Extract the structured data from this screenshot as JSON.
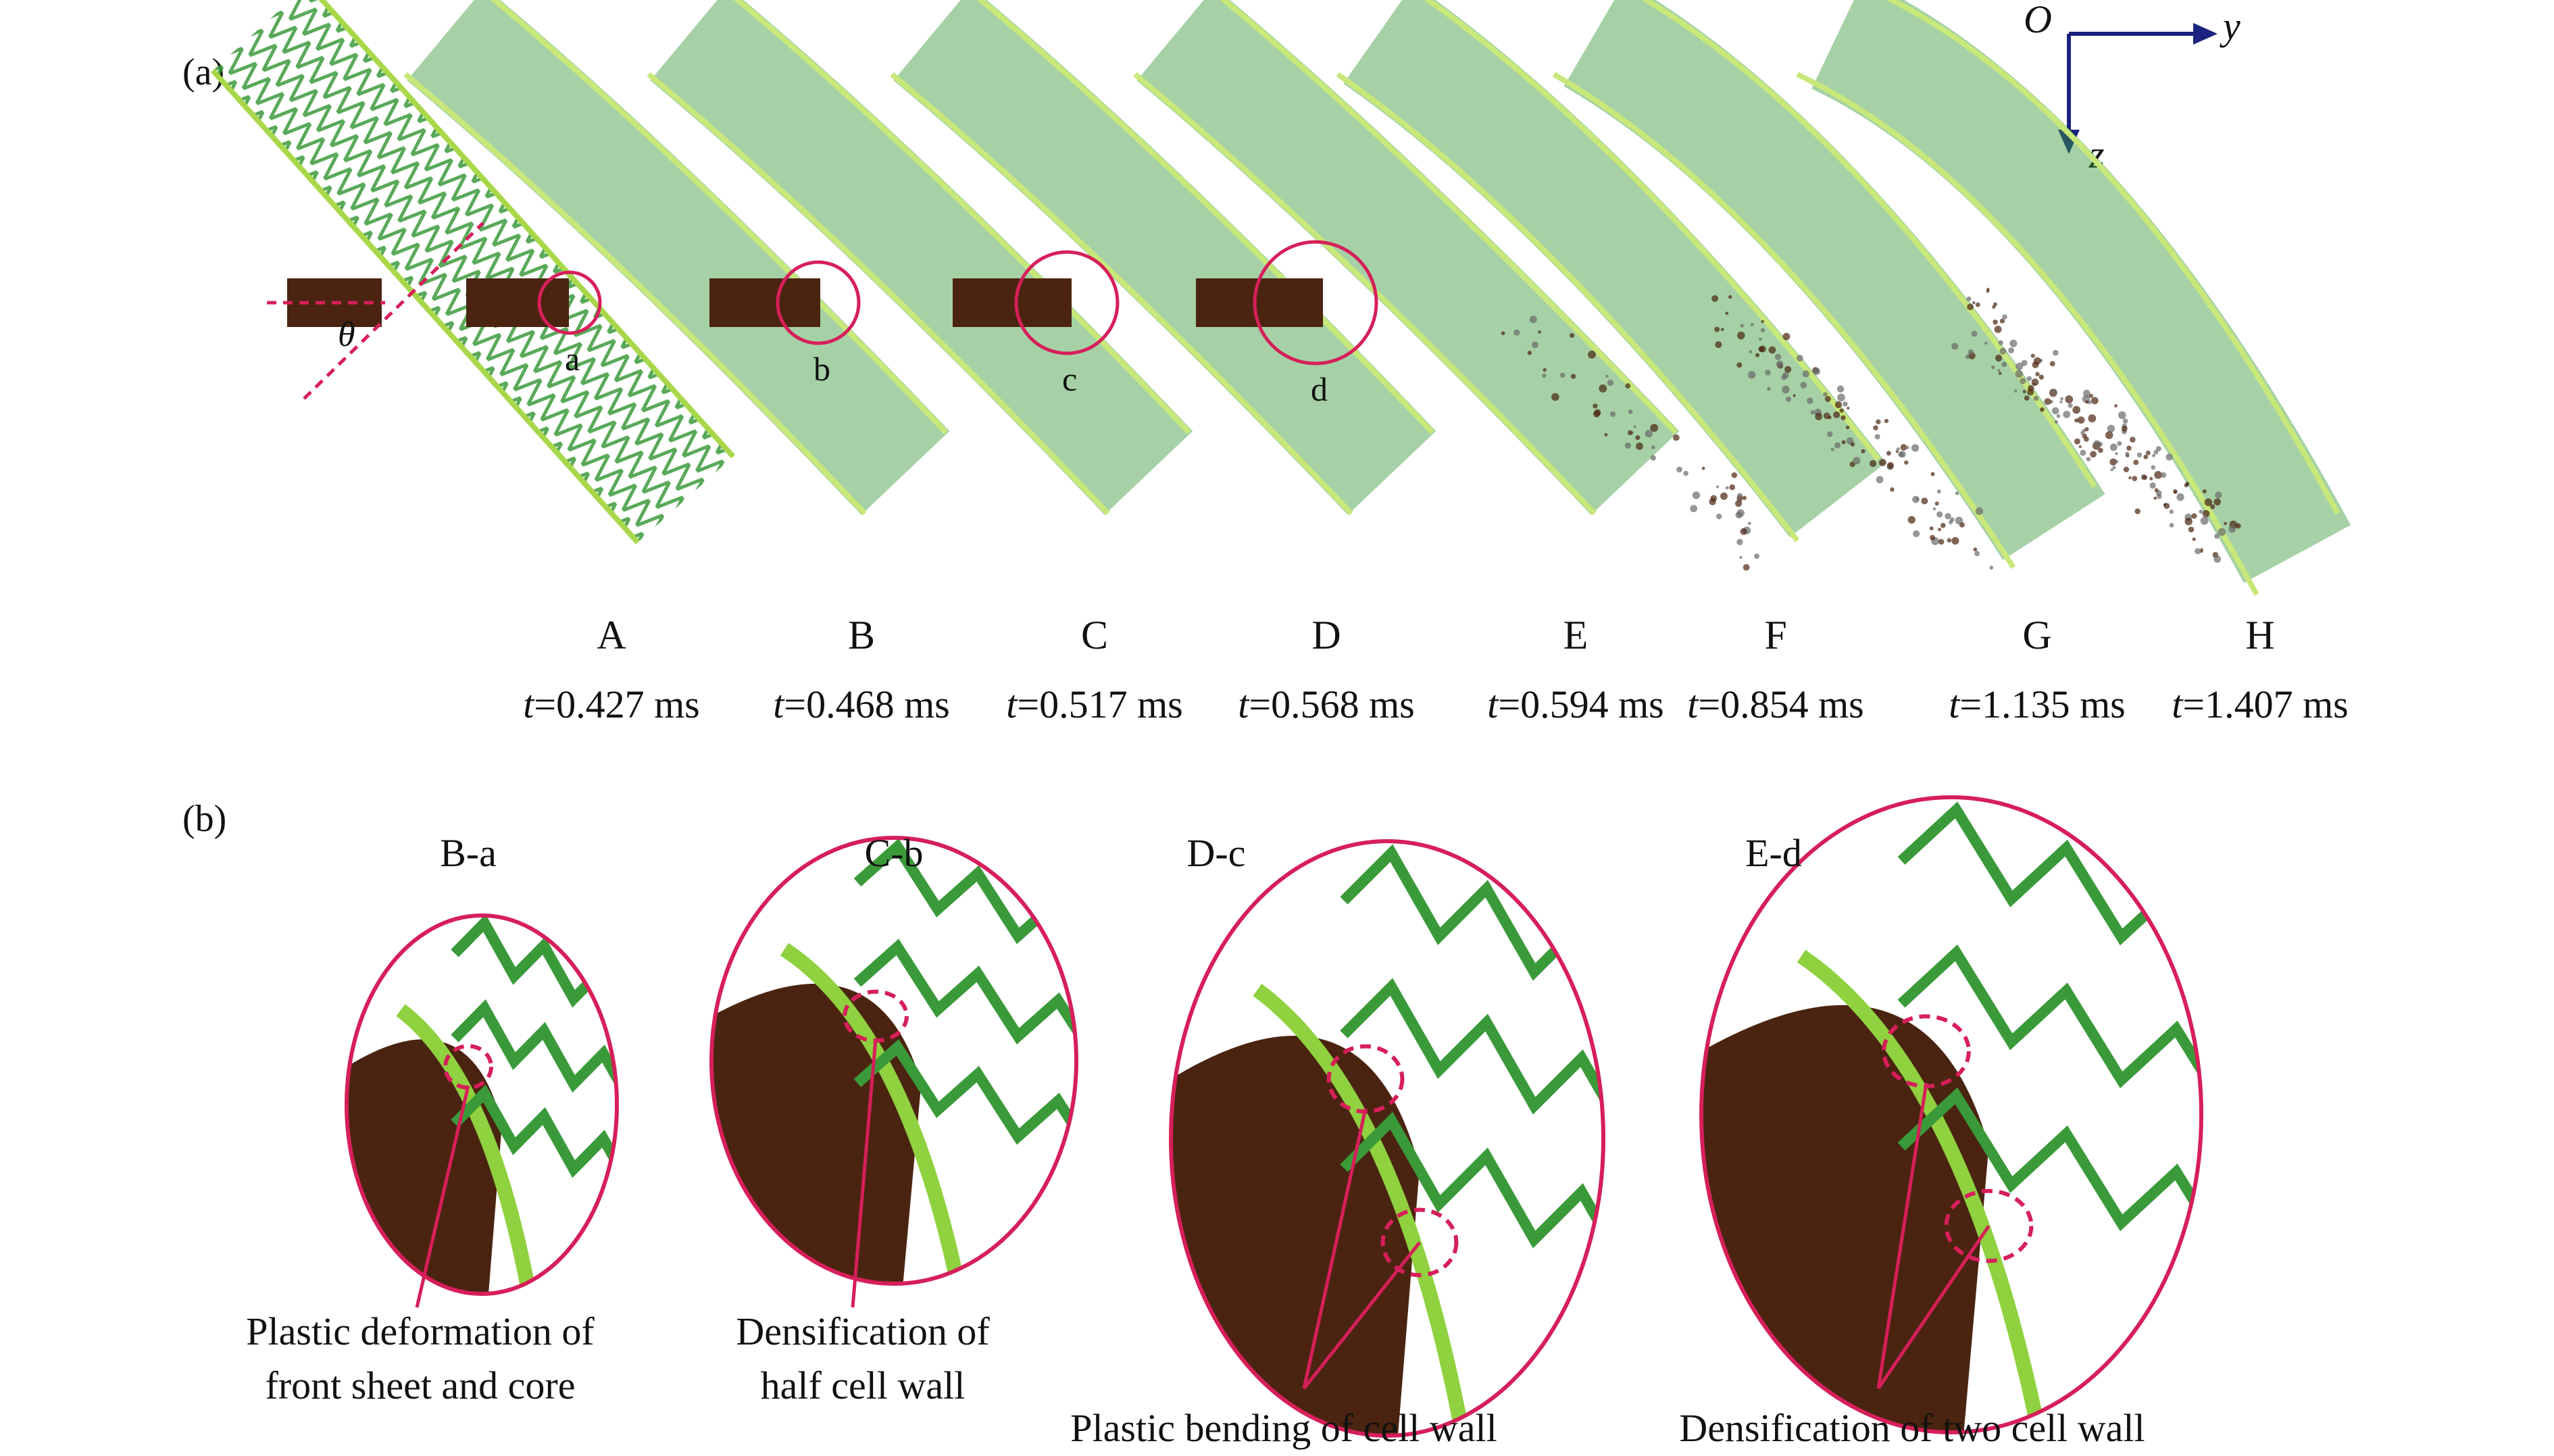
{
  "panel_a": {
    "label": "(a)",
    "axes": {
      "origin": "O",
      "y": "y",
      "z": "z"
    },
    "angle_symbol": "θ",
    "frames": [
      {
        "letter": "A",
        "time": "=0.427 ms",
        "time_var": "t",
        "marker": ""
      },
      {
        "letter": "B",
        "time": "=0.468 ms",
        "time_var": "t",
        "marker": "a"
      },
      {
        "letter": "C",
        "time": "=0.517 ms",
        "time_var": "t",
        "marker": "b"
      },
      {
        "letter": "D",
        "time": "=0.568 ms",
        "time_var": "t",
        "marker": "c"
      },
      {
        "letter": "E",
        "time": "=0.594 ms",
        "time_var": "t",
        "marker": "d"
      },
      {
        "letter": "F",
        "time": "=0.854 ms",
        "time_var": "t",
        "marker": ""
      },
      {
        "letter": "G",
        "time": "=1.135 ms",
        "time_var": "t",
        "marker": ""
      },
      {
        "letter": "H",
        "time": "=1.407 ms",
        "time_var": "t",
        "marker": ""
      }
    ]
  },
  "panel_b": {
    "label": "(b)",
    "zooms": [
      {
        "title": "B-a",
        "caption_lines": [
          "Plastic deformation of",
          "front sheet and core"
        ]
      },
      {
        "title": "C-b",
        "caption_lines": [
          "Densification of",
          "half cell wall"
        ]
      },
      {
        "title": "D-c",
        "caption_lines": [
          "Plastic bending of cell wall"
        ]
      },
      {
        "title": "E-d",
        "caption_lines": [
          "Densification of two cell wall"
        ]
      }
    ]
  },
  "colors": {
    "panel_face": "#c8e87a",
    "core_lines": "#3a9a3a",
    "projectile": "#4a2410",
    "highlight": "#d61f5a",
    "debris": "#6a6a6a"
  }
}
